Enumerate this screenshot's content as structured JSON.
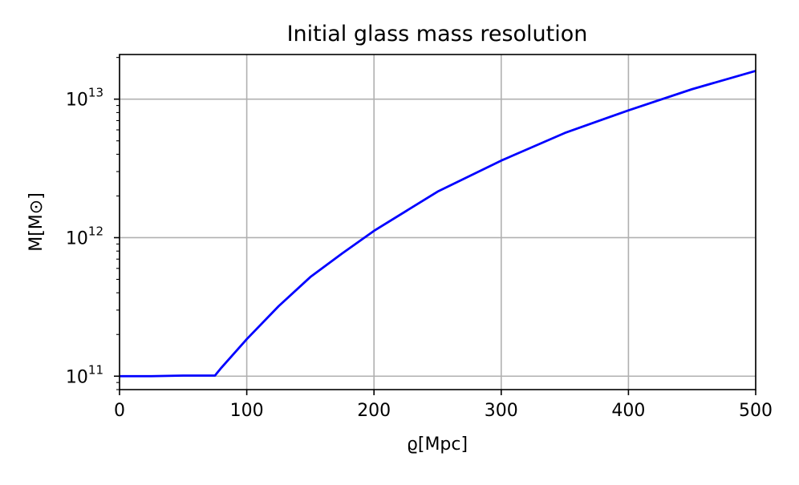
{
  "chart_data": {
    "type": "line",
    "title": "Initial glass mass resolution",
    "xlabel": "ϱ[Mpc]",
    "ylabel": "M[M⊙]",
    "xlim": [
      0,
      500
    ],
    "ylim": [
      80000000000.0,
      21000000000000.0
    ],
    "yscale": "log",
    "grid": true,
    "x_ticks": [
      0,
      100,
      200,
      300,
      400,
      500
    ],
    "y_ticks": [
      {
        "value": 100000000000.0,
        "base": "10",
        "exp": "11"
      },
      {
        "value": 1000000000000.0,
        "base": "10",
        "exp": "12"
      },
      {
        "value": 10000000000000.0,
        "base": "10",
        "exp": "13"
      }
    ],
    "series": [
      {
        "color": "#0000ff",
        "x": [
          0,
          25,
          50,
          75,
          80,
          100,
          125,
          150,
          175,
          200,
          250,
          300,
          350,
          400,
          450,
          500
        ],
        "y": [
          100000000000.0,
          100000000000.0,
          101000000000.0,
          101000000000.0,
          115000000000.0,
          185000000000.0,
          320000000000.0,
          520000000000.0,
          770000000000.0,
          1120000000000.0,
          2150000000000.0,
          3600000000000.0,
          5700000000000.0,
          8300000000000.0,
          11800000000000.0,
          16000000000000.0
        ]
      }
    ]
  }
}
